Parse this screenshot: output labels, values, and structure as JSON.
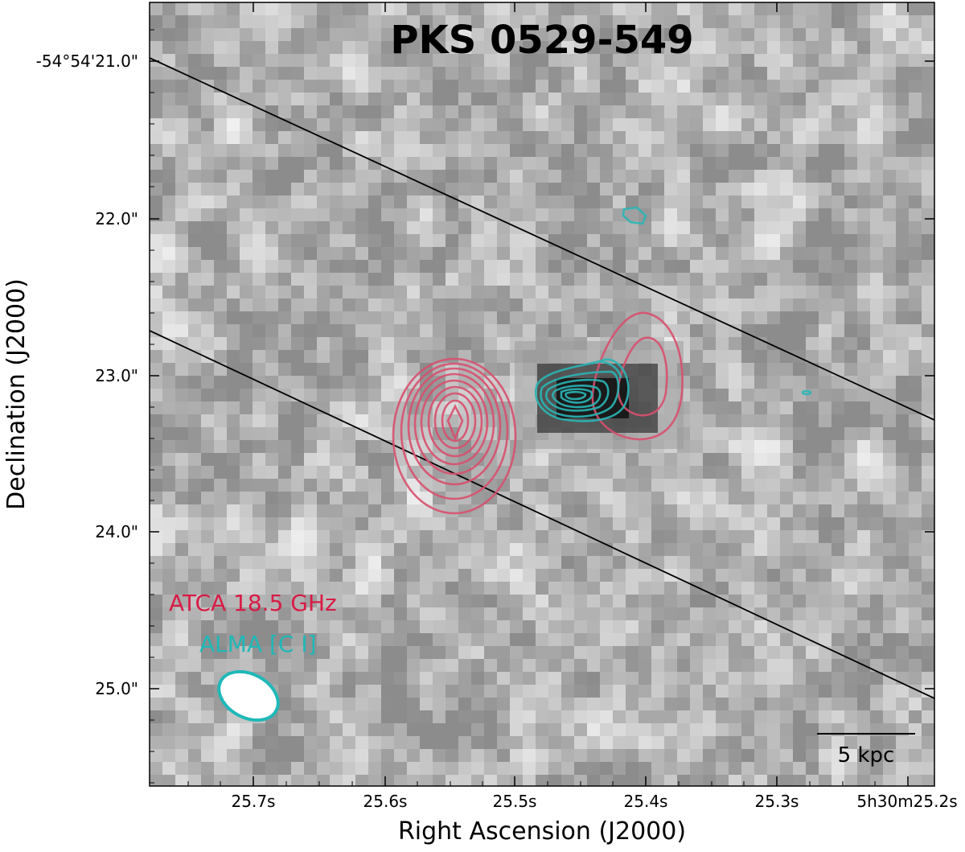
{
  "figure": {
    "title": "PKS 0529-549",
    "xlabel": "Right Ascension (J2000)",
    "ylabel": "Declination (J2000)",
    "x_ticks": [
      "25.7s",
      "25.6s",
      "25.5s",
      "25.4s",
      "25.3s",
      "5h30m25.2s"
    ],
    "y_ticks": [
      "-54°54'21.0\"",
      "22.0\"",
      "23.0\"",
      "24.0\"",
      "25.0\""
    ],
    "legend": {
      "atca": {
        "label": "ATCA 18.5 GHz",
        "color": "#d81b45"
      },
      "alma": {
        "label": "ALMA [C I]",
        "color": "#1fb8b8"
      }
    },
    "scale_bar": {
      "label": "5 kpc"
    },
    "colors": {
      "atca_contour": "#d8506e",
      "alma_contour": "#2ab5b5",
      "slit_line": "#000000",
      "background_map": "grayscale"
    }
  }
}
